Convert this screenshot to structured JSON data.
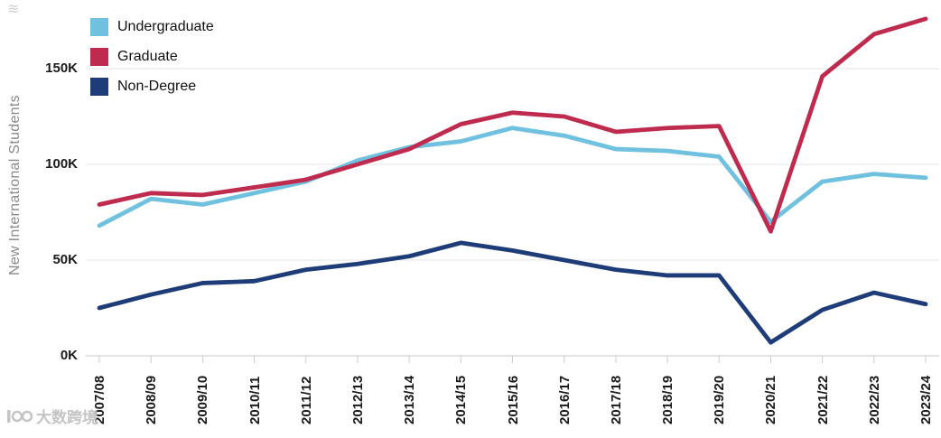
{
  "chart_data": {
    "type": "line",
    "title": "",
    "xlabel": "",
    "ylabel": "New International Students",
    "ylim": [
      0,
      185
    ],
    "grid": true,
    "legend_position": "top-left",
    "categories": [
      "2007/08",
      "2008/09",
      "2009/10",
      "2010/11",
      "2011/12",
      "2012/13",
      "2013/14",
      "2014/15",
      "2015/16",
      "2016/17",
      "2017/18",
      "2018/19",
      "2019/20",
      "2020/21",
      "2021/22",
      "2022/23",
      "2023/24"
    ],
    "y_ticks": [
      {
        "label": "0K",
        "value": 0
      },
      {
        "label": "50K",
        "value": 50
      },
      {
        "label": "100K",
        "value": 100
      },
      {
        "label": "150K",
        "value": 150
      }
    ],
    "series": [
      {
        "name": "Undergraduate",
        "color": "#6FC1DF",
        "values": [
          68,
          82,
          79,
          85,
          91,
          102,
          109,
          112,
          119,
          115,
          108,
          107,
          104,
          70,
          91,
          95,
          93
        ]
      },
      {
        "name": "Graduate",
        "color": "#BE2B4E",
        "values": [
          79,
          85,
          84,
          88,
          92,
          100,
          108,
          121,
          127,
          125,
          117,
          119,
          120,
          65,
          146,
          168,
          176
        ]
      },
      {
        "name": "Non-Degree",
        "color": "#1E3D78",
        "values": [
          25,
          32,
          38,
          39,
          45,
          48,
          52,
          59,
          55,
          50,
          45,
          42,
          42,
          7,
          24,
          33,
          27
        ]
      }
    ]
  },
  "decoration": {
    "squiggle": "≋"
  },
  "watermark": {
    "text": "大数跨境"
  }
}
